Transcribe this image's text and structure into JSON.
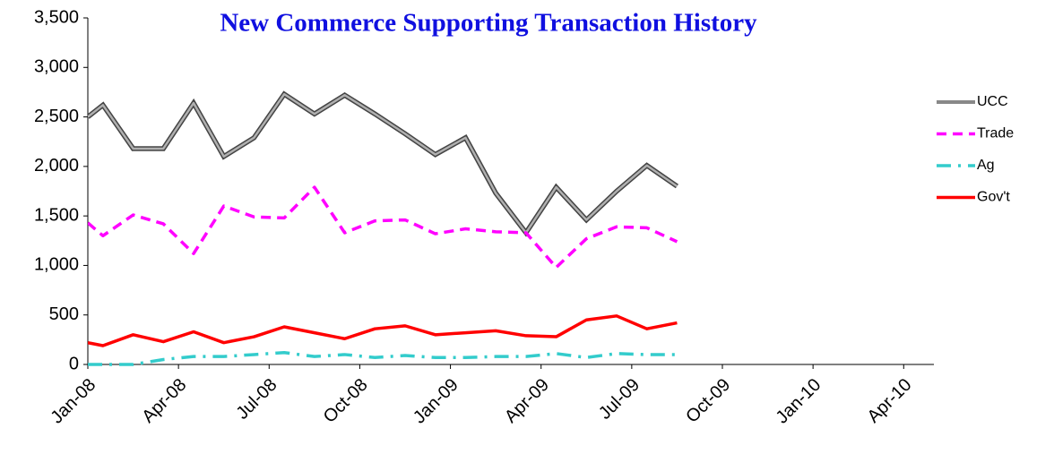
{
  "chart_data": {
    "type": "line",
    "title": "New Commerce Supporting Transaction History",
    "x": [
      "Dec-07",
      "Jan-08",
      "Feb-08",
      "Mar-08",
      "Apr-08",
      "May-08",
      "Jun-08",
      "Jul-08",
      "Aug-08",
      "Sep-08",
      "Oct-08",
      "Nov-08",
      "Dec-08",
      "Jan-09",
      "Feb-09",
      "Mar-09",
      "Apr-09",
      "May-09",
      "Jun-09",
      "Jul-09",
      "Aug-09"
    ],
    "series": [
      {
        "name": "UCC",
        "color": "#7a7a7a",
        "values": [
          2500,
          2620,
          2180,
          2180,
          2640,
          2100,
          2290,
          2730,
          2530,
          2720,
          2530,
          2330,
          2120,
          2290,
          1730,
          1330,
          1790,
          1460,
          1750,
          2010,
          1800
        ]
      },
      {
        "name": "Trade",
        "color": "#ff00ff",
        "values": [
          1430,
          1300,
          1510,
          1420,
          1120,
          1600,
          1490,
          1480,
          1790,
          1330,
          1450,
          1460,
          1320,
          1370,
          1340,
          1330,
          980,
          1270,
          1390,
          1380,
          1240
        ]
      },
      {
        "name": "Ag",
        "color": "#33cccc",
        "values": [
          0,
          0,
          0,
          50,
          80,
          80,
          100,
          120,
          80,
          100,
          70,
          90,
          70,
          70,
          80,
          80,
          110,
          70,
          110,
          100,
          100
        ]
      },
      {
        "name": "Gov't",
        "color": "#ff0000",
        "values": [
          220,
          190,
          300,
          230,
          330,
          220,
          280,
          380,
          320,
          260,
          360,
          390,
          300,
          320,
          340,
          290,
          280,
          450,
          490,
          360,
          420
        ]
      }
    ],
    "xlim": [
      "Jan-08",
      "May-10"
    ],
    "xticks": [
      "Jan-08",
      "Apr-08",
      "Jul-08",
      "Oct-08",
      "Jan-09",
      "Apr-09",
      "Jul-09",
      "Oct-09",
      "Jan-10",
      "Apr-10"
    ],
    "ylim": [
      0,
      3500
    ],
    "yticks": [
      0,
      {
        "value": 500,
        "label": "500"
      },
      {
        "value": 1000,
        "label": "1,000"
      },
      {
        "value": 1500,
        "label": "1,500"
      },
      {
        "value": 2000,
        "label": "2,000"
      },
      {
        "value": 2500,
        "label": "2,500"
      },
      {
        "value": 3000,
        "label": "3,000"
      },
      {
        "value": 3500,
        "label": "3,500"
      }
    ],
    "grid": false,
    "legend": "right"
  }
}
